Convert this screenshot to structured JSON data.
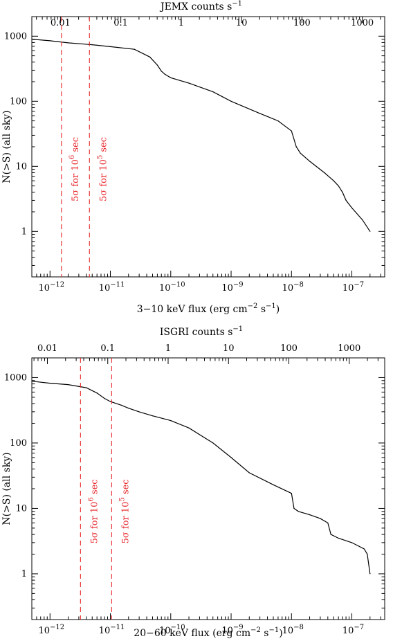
{
  "colors": {
    "curve": "#000000",
    "limit_lines": "#e8262a"
  },
  "chart_data": [
    {
      "type": "line",
      "xscale": "log",
      "yscale": "log",
      "xlim": [
        5e-13,
        3.5e-07
      ],
      "ylim": [
        0.2,
        2000
      ],
      "xlabel": "3−10 keV flux (erg cm",
      "xlabel_exp": "−2",
      "xlabel_mid": " s",
      "xlabel_exp2": "−1",
      "xlabel_end": ")",
      "ylabel": "N(>S) (all  sky)",
      "top_axis_label": "JEMX counts s",
      "top_axis_label_exp": "−1",
      "top_axis_scale": 1.49e-10,
      "xticks": [
        1e-12,
        1e-11,
        1e-10,
        1e-09,
        1e-08,
        1e-07
      ],
      "xtick_base": [
        "10",
        "10",
        "10",
        "10",
        "10",
        "10"
      ],
      "xtick_exp": [
        "−12",
        "−11",
        "−10",
        "−9",
        "−8",
        "−7"
      ],
      "yticks": [
        1,
        10,
        100,
        1000
      ],
      "ytick_labels": [
        "1",
        "10",
        "100",
        "1000"
      ],
      "top_ticks": [
        0.01,
        0.1,
        1,
        10,
        100,
        1000
      ],
      "top_tick_labels": [
        "0.01",
        "0.1",
        "1",
        "10",
        "100",
        "1000"
      ],
      "series": [
        {
          "x": [
            5e-13,
            1e-12,
            2e-12,
            5e-12,
            1e-11,
            2.5e-11,
            4.5e-11,
            6e-11,
            7e-11,
            8e-11,
            1e-10,
            2e-10,
            5e-10,
            1e-09,
            3e-09,
            6e-09,
            1e-08,
            1.2e-08,
            1.4e-08,
            2e-08,
            3.5e-08,
            5e-08,
            6e-08,
            7e-08,
            8e-08,
            1e-07,
            1.5e-07,
            2e-07
          ],
          "y": [
            900,
            850,
            790,
            740,
            690,
            630,
            480,
            360,
            290,
            260,
            230,
            190,
            140,
            100,
            65,
            50,
            35,
            20,
            16,
            12,
            8,
            6,
            5,
            4,
            3,
            2.3,
            1.5,
            1
          ]
        }
      ],
      "limits": [
        {
          "x": 1.55e-12,
          "label": "5σ for 10",
          "label_exp": "6",
          "label_end": " sec"
        },
        {
          "x": 4.5e-12,
          "label": "5σ for 10",
          "label_exp": "5",
          "label_end": " sec"
        }
      ]
    },
    {
      "type": "line",
      "xscale": "log",
      "yscale": "log",
      "xlim": [
        5e-13,
        3.5e-07
      ],
      "ylim": [
        0.2,
        2000
      ],
      "xlabel": "20−60 keV flux (erg cm",
      "xlabel_exp": "−2",
      "xlabel_mid": " s",
      "xlabel_exp2": "−1",
      "xlabel_end": ")",
      "ylabel": "N(>S) (all  sky)",
      "top_axis_label": "ISGRI counts s",
      "top_axis_label_exp": "−1",
      "top_axis_scale": 9.05e-11,
      "xticks": [
        1e-12,
        1e-11,
        1e-10,
        1e-09,
        1e-08,
        1e-07
      ],
      "xtick_base": [
        "10",
        "10",
        "10",
        "10",
        "10",
        "10"
      ],
      "xtick_exp": [
        "−12",
        "−11",
        "−10",
        "−9",
        "−8",
        "−7"
      ],
      "yticks": [
        1,
        10,
        100,
        1000
      ],
      "ytick_labels": [
        "1",
        "10",
        "100",
        "1000"
      ],
      "top_ticks": [
        0.01,
        0.1,
        1,
        10,
        100,
        1000
      ],
      "top_tick_labels": [
        "0.01",
        "0.1",
        "1",
        "10",
        "100",
        "1000"
      ],
      "series": [
        {
          "x": [
            5e-13,
            1e-12,
            2e-12,
            4e-12,
            6e-12,
            8e-12,
            1e-11,
            1.5e-11,
            2e-11,
            3e-11,
            5e-11,
            1e-10,
            2e-10,
            5e-10,
            1e-09,
            2e-09,
            5e-09,
            1e-08,
            1.1e-08,
            1.3e-08,
            2e-08,
            3e-08,
            4e-08,
            4.5e-08,
            6e-08,
            1e-07,
            1.6e-07,
            1.8e-07,
            2e-07
          ],
          "y": [
            880,
            820,
            780,
            700,
            580,
            480,
            430,
            380,
            340,
            300,
            260,
            220,
            170,
            100,
            60,
            35,
            23,
            17,
            10,
            9,
            8,
            7,
            6,
            4,
            3.5,
            3,
            2.4,
            2,
            1
          ]
        }
      ],
      "limits": [
        {
          "x": 3.2e-12,
          "label": "5σ for 10",
          "label_exp": "6",
          "label_end": " sec"
        },
        {
          "x": 1.05e-11,
          "label": "5σ for 10",
          "label_exp": "5",
          "label_end": " sec"
        }
      ]
    }
  ]
}
